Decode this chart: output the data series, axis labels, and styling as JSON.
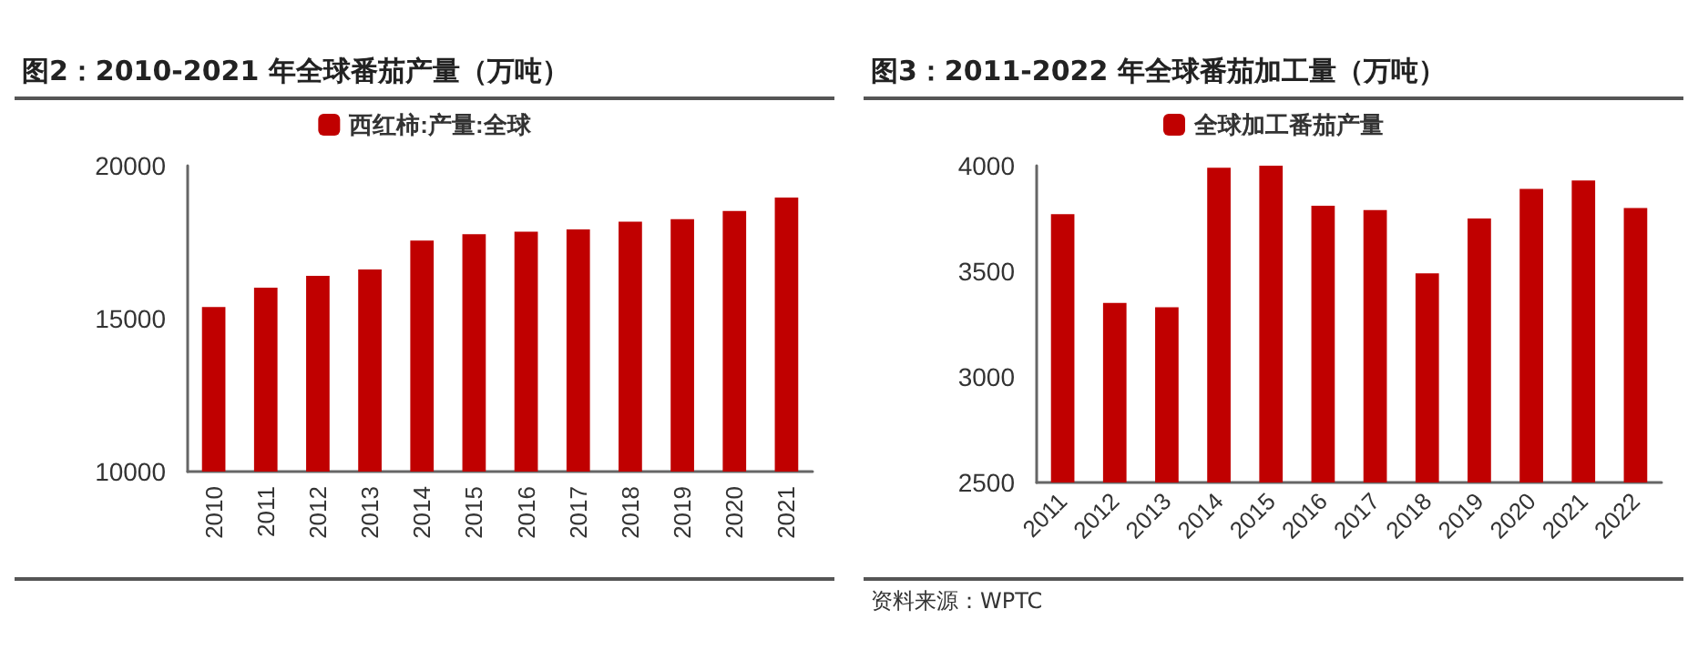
{
  "chart_data": [
    {
      "type": "bar",
      "title": "图2：2010-2021 年全球番茄产量（万吨）",
      "categories": [
        "2010",
        "2011",
        "2012",
        "2013",
        "2014",
        "2015",
        "2016",
        "2017",
        "2018",
        "2019",
        "2020",
        "2021"
      ],
      "series": [
        {
          "name": "西红柿:产量:全球",
          "color": "#c00000",
          "values": [
            15380,
            16010,
            16400,
            16610,
            17550,
            17760,
            17840,
            17920,
            18170,
            18250,
            18520,
            18960
          ]
        }
      ],
      "ylim": [
        10000,
        20000
      ],
      "yticks": [
        10000,
        15000,
        20000
      ],
      "grid": false,
      "legend": "top"
    },
    {
      "type": "bar",
      "title": "图3：2011-2022 年全球番茄加工量（万吨）",
      "categories": [
        "2011",
        "2012",
        "2013",
        "2014",
        "2015",
        "2016",
        "2017",
        "2018",
        "2019",
        "2020",
        "2021",
        "2022"
      ],
      "series": [
        {
          "name": "全球加工番茄产量",
          "color": "#c00000",
          "values": [
            3770,
            3350,
            3330,
            3990,
            4000,
            3810,
            3790,
            3490,
            3750,
            3890,
            3930,
            3800
          ]
        }
      ],
      "ylim": [
        2500,
        4000
      ],
      "yticks": [
        2500,
        3000,
        3500,
        4000
      ],
      "grid": false,
      "legend": "top",
      "annotations": [
        "资料来源：WPTC"
      ]
    }
  ]
}
